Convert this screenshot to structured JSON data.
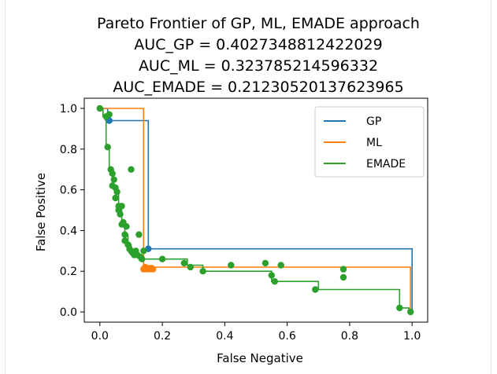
{
  "chart_data": {
    "type": "line",
    "title_lines": [
      "Pareto Frontier of GP, ML, EMADE approach",
      "AUC_GP = 0.4027348812422029",
      "AUC_ML = 0.323785214596332",
      "AUC_EMADE = 0.21230520137623965"
    ],
    "xlabel": "False Negative",
    "ylabel": "False Positive",
    "xlim": [
      -0.05,
      1.05
    ],
    "ylim": [
      -0.05,
      1.05
    ],
    "xticks": [
      0.0,
      0.2,
      0.4,
      0.6,
      0.8,
      1.0
    ],
    "yticks": [
      0.0,
      0.2,
      0.4,
      0.6,
      0.8,
      1.0
    ],
    "tick_labels": [
      "0.0",
      "0.2",
      "0.4",
      "0.6",
      "0.8",
      "1.0"
    ],
    "grid": false,
    "legend_position": "top-right",
    "series": [
      {
        "name": "GP",
        "color": "#1f77b4",
        "step_line": [
          [
            0,
            1
          ],
          [
            0.025,
            1
          ],
          [
            0.025,
            0.94
          ],
          [
            0.155,
            0.94
          ],
          [
            0.155,
            0.31
          ],
          [
            1.0,
            0.31
          ],
          [
            1.0,
            0
          ]
        ],
        "points": [
          [
            0.025,
            0.95
          ],
          [
            0.03,
            0.94
          ],
          [
            0.155,
            0.31
          ]
        ]
      },
      {
        "name": "ML",
        "color": "#ff7f0e",
        "step_line": [
          [
            0,
            1
          ],
          [
            0.14,
            1
          ],
          [
            0.14,
            0.22
          ],
          [
            0.995,
            0.22
          ],
          [
            0.995,
            0
          ]
        ],
        "points": [
          [
            0.14,
            0.21
          ],
          [
            0.145,
            0.22
          ],
          [
            0.15,
            0.21
          ],
          [
            0.155,
            0.215
          ],
          [
            0.16,
            0.21
          ],
          [
            0.165,
            0.215
          ],
          [
            0.17,
            0.21
          ]
        ]
      },
      {
        "name": "EMADE",
        "color": "#2ca02c",
        "step_line": [
          [
            0,
            1
          ],
          [
            0.01,
            1
          ],
          [
            0.01,
            0.96
          ],
          [
            0.02,
            0.96
          ],
          [
            0.02,
            0.81
          ],
          [
            0.03,
            0.81
          ],
          [
            0.03,
            0.7
          ],
          [
            0.04,
            0.7
          ],
          [
            0.04,
            0.62
          ],
          [
            0.05,
            0.62
          ],
          [
            0.05,
            0.58
          ],
          [
            0.06,
            0.58
          ],
          [
            0.06,
            0.5
          ],
          [
            0.07,
            0.5
          ],
          [
            0.07,
            0.44
          ],
          [
            0.08,
            0.44
          ],
          [
            0.08,
            0.38
          ],
          [
            0.09,
            0.38
          ],
          [
            0.09,
            0.33
          ],
          [
            0.1,
            0.33
          ],
          [
            0.1,
            0.3
          ],
          [
            0.11,
            0.3
          ],
          [
            0.11,
            0.28
          ],
          [
            0.12,
            0.28
          ],
          [
            0.12,
            0.27
          ],
          [
            0.13,
            0.27
          ],
          [
            0.13,
            0.26
          ],
          [
            0.28,
            0.26
          ],
          [
            0.28,
            0.23
          ],
          [
            0.33,
            0.23
          ],
          [
            0.33,
            0.2
          ],
          [
            0.55,
            0.2
          ],
          [
            0.55,
            0.15
          ],
          [
            0.7,
            0.15
          ],
          [
            0.7,
            0.11
          ],
          [
            0.96,
            0.11
          ],
          [
            0.96,
            0.02
          ],
          [
            0.99,
            0.02
          ],
          [
            0.99,
            0
          ]
        ],
        "points": [
          [
            0.0,
            1.0
          ],
          [
            0.02,
            0.96
          ],
          [
            0.025,
            0.81
          ],
          [
            0.03,
            0.97
          ],
          [
            0.035,
            0.7
          ],
          [
            0.04,
            0.68
          ],
          [
            0.04,
            0.62
          ],
          [
            0.045,
            0.65
          ],
          [
            0.05,
            0.61
          ],
          [
            0.05,
            0.56
          ],
          [
            0.055,
            0.59
          ],
          [
            0.06,
            0.52
          ],
          [
            0.06,
            0.5
          ],
          [
            0.065,
            0.48
          ],
          [
            0.07,
            0.52
          ],
          [
            0.07,
            0.43
          ],
          [
            0.075,
            0.44
          ],
          [
            0.08,
            0.38
          ],
          [
            0.08,
            0.35
          ],
          [
            0.085,
            0.42
          ],
          [
            0.09,
            0.33
          ],
          [
            0.095,
            0.31
          ],
          [
            0.1,
            0.7
          ],
          [
            0.1,
            0.3
          ],
          [
            0.105,
            0.29
          ],
          [
            0.11,
            0.28
          ],
          [
            0.115,
            0.3
          ],
          [
            0.12,
            0.28
          ],
          [
            0.125,
            0.38
          ],
          [
            0.13,
            0.27
          ],
          [
            0.135,
            0.26
          ],
          [
            0.14,
            0.3
          ],
          [
            0.2,
            0.26
          ],
          [
            0.27,
            0.24
          ],
          [
            0.29,
            0.22
          ],
          [
            0.33,
            0.2
          ],
          [
            0.42,
            0.23
          ],
          [
            0.53,
            0.24
          ],
          [
            0.55,
            0.18
          ],
          [
            0.56,
            0.15
          ],
          [
            0.58,
            0.23
          ],
          [
            0.69,
            0.11
          ],
          [
            0.78,
            0.21
          ],
          [
            0.78,
            0.17
          ],
          [
            0.96,
            0.02
          ],
          [
            0.995,
            0.0
          ]
        ]
      }
    ]
  }
}
